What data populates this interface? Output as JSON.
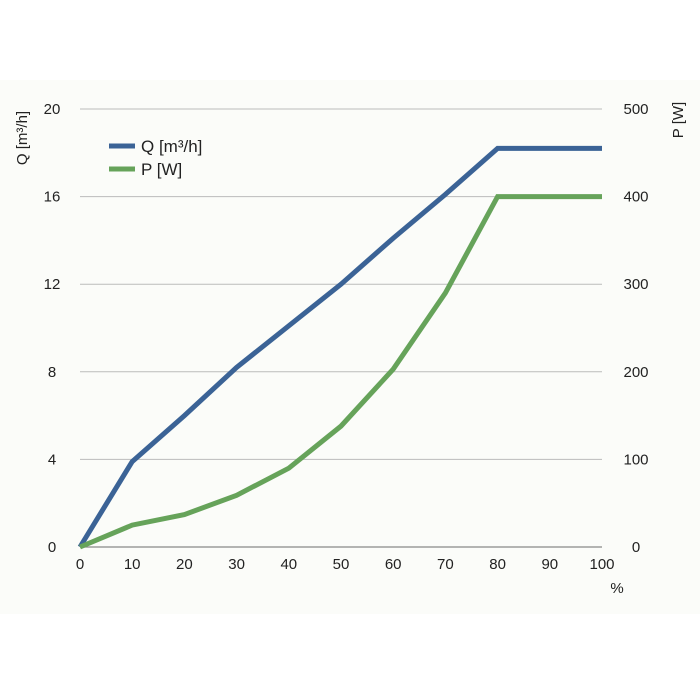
{
  "chart_data": {
    "type": "line",
    "x_unit": "%",
    "x": [
      0,
      10,
      20,
      30,
      40,
      50,
      60,
      70,
      80,
      90,
      100
    ],
    "x_ticks": [
      "0",
      "10",
      "20",
      "30",
      "40",
      "50",
      "60",
      "70",
      "80",
      "90",
      "100"
    ],
    "xlim": [
      0,
      100
    ],
    "y_left": {
      "label": "Q [m³/h]",
      "ylim": [
        0,
        20
      ],
      "ticks": [
        "0",
        "4",
        "8",
        "12",
        "16",
        "20"
      ]
    },
    "y_right": {
      "label": "P [W]",
      "ylim": [
        0,
        500
      ],
      "ticks": [
        "0",
        "100",
        "200",
        "300",
        "400",
        "500"
      ]
    },
    "grid": "horizontal",
    "legend": "top-left",
    "series": [
      {
        "name": "Q [m³/h]",
        "axis": "left",
        "color": "#3b6396",
        "values": [
          0,
          3.9,
          6.0,
          8.2,
          10.1,
          12.0,
          14.1,
          16.1,
          18.2,
          18.2,
          18.2
        ]
      },
      {
        "name": "P [W]",
        "axis": "right",
        "color": "#66a35a",
        "values": [
          0,
          25,
          37,
          59,
          90,
          138,
          203,
          290,
          400,
          400,
          400
        ]
      }
    ]
  }
}
